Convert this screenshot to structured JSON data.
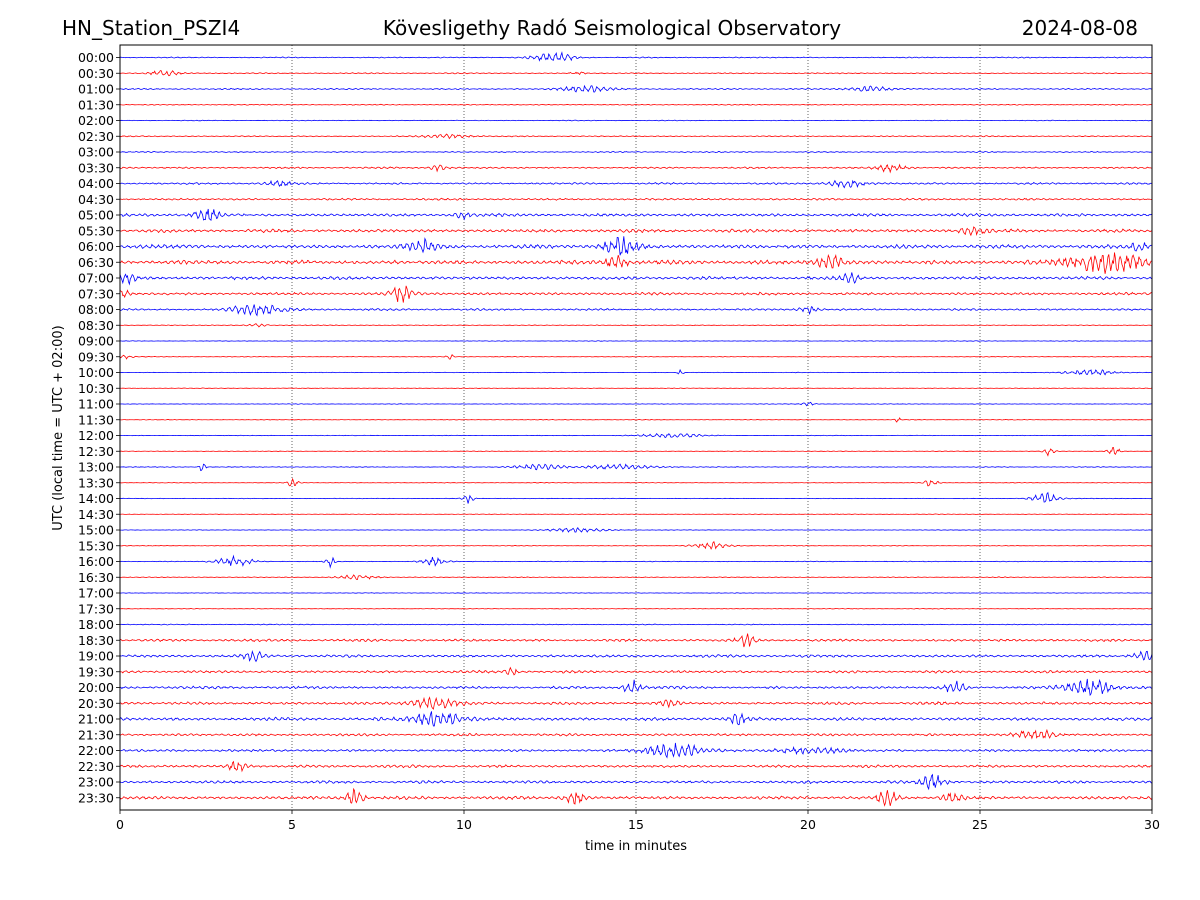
{
  "chart_data": {
    "type": "line",
    "chart_kind": "helicorder",
    "station_label": "HN_Station_PSZI4",
    "title": "Kövesligethy Radó Seismological Observatory",
    "date": "2024-08-08",
    "xlabel": "time in minutes",
    "ylabel": "UTC (local time = UTC + 02:00)",
    "xlim": [
      0,
      30
    ],
    "x_ticks": [
      0,
      5,
      10,
      15,
      20,
      25,
      30
    ],
    "vertical_gridlines": [
      5,
      10,
      15,
      20,
      25
    ],
    "row_labels": [
      "00:00",
      "00:30",
      "01:00",
      "01:30",
      "02:00",
      "02:30",
      "03:00",
      "03:30",
      "04:00",
      "04:30",
      "05:00",
      "05:30",
      "06:00",
      "06:30",
      "07:00",
      "07:30",
      "08:00",
      "08:30",
      "09:00",
      "09:30",
      "10:00",
      "10:30",
      "11:00",
      "11:30",
      "12:00",
      "12:30",
      "13:00",
      "13:30",
      "14:00",
      "14:30",
      "15:00",
      "15:30",
      "16:00",
      "16:30",
      "17:00",
      "17:30",
      "18:00",
      "18:30",
      "19:00",
      "19:30",
      "20:00",
      "20:30",
      "21:00",
      "21:30",
      "22:00",
      "22:30",
      "23:00",
      "23:30"
    ],
    "trace_colors": [
      "#0000ff",
      "#ff0000"
    ],
    "noise_levels": [
      0.6,
      0.6,
      0.7,
      0.5,
      0.4,
      0.6,
      0.6,
      0.9,
      1.1,
      1.1,
      1.6,
      1.8,
      2.2,
      2.3,
      1.8,
      1.5,
      1.1,
      0.4,
      0.3,
      0.3,
      0.3,
      0.3,
      0.3,
      0.3,
      0.3,
      0.3,
      0.4,
      0.3,
      0.3,
      0.3,
      0.3,
      0.3,
      0.4,
      0.4,
      0.3,
      0.3,
      0.5,
      1.4,
      1.5,
      1.4,
      1.5,
      1.6,
      1.8,
      1.4,
      1.3,
      1.5,
      1.6,
      1.8
    ],
    "bursts": [
      {
        "row": 0,
        "t": 12.6,
        "amp": 5,
        "dur": 0.7
      },
      {
        "row": 1,
        "t": 1.3,
        "amp": 3,
        "dur": 0.5
      },
      {
        "row": 1,
        "t": 13.3,
        "amp": 2.5,
        "dur": 0.2
      },
      {
        "row": 2,
        "t": 13.5,
        "amp": 3.5,
        "dur": 0.8
      },
      {
        "row": 2,
        "t": 21.8,
        "amp": 2.5,
        "dur": 0.8
      },
      {
        "row": 5,
        "t": 9.5,
        "amp": 2,
        "dur": 0.8
      },
      {
        "row": 7,
        "t": 9.3,
        "amp": 3,
        "dur": 0.3
      },
      {
        "row": 7,
        "t": 22.4,
        "amp": 4,
        "dur": 0.5
      },
      {
        "row": 8,
        "t": 4.6,
        "amp": 3,
        "dur": 0.4
      },
      {
        "row": 8,
        "t": 21.1,
        "amp": 4,
        "dur": 0.6
      },
      {
        "row": 10,
        "t": 2.5,
        "amp": 7,
        "dur": 0.4
      },
      {
        "row": 10,
        "t": 10,
        "amp": 4,
        "dur": 0.3
      },
      {
        "row": 11,
        "t": 24.8,
        "amp": 5,
        "dur": 0.4
      },
      {
        "row": 12,
        "t": 14.6,
        "amp": 9,
        "dur": 0.6
      },
      {
        "row": 12,
        "t": 8.8,
        "amp": 6,
        "dur": 0.6
      },
      {
        "row": 12,
        "t": 29.6,
        "amp": 6,
        "dur": 0.3
      },
      {
        "row": 13,
        "t": 28.6,
        "amp": 10,
        "dur": 1.2
      },
      {
        "row": 13,
        "t": 20.7,
        "amp": 7,
        "dur": 0.5
      },
      {
        "row": 13,
        "t": 14.4,
        "amp": 6,
        "dur": 0.4
      },
      {
        "row": 14,
        "t": 21.2,
        "amp": 6,
        "dur": 0.3
      },
      {
        "row": 14,
        "t": 0.2,
        "amp": 5,
        "dur": 0.3
      },
      {
        "row": 15,
        "t": 8.2,
        "amp": 9,
        "dur": 0.4
      },
      {
        "row": 15,
        "t": 0.1,
        "amp": 5,
        "dur": 0.2
      },
      {
        "row": 16,
        "t": 4,
        "amp": 5,
        "dur": 1
      },
      {
        "row": 16,
        "t": 20,
        "amp": 4,
        "dur": 0.3
      },
      {
        "row": 17,
        "t": 4,
        "amp": 2,
        "dur": 0.3
      },
      {
        "row": 19,
        "t": 0.2,
        "amp": 2,
        "dur": 0.2
      },
      {
        "row": 19,
        "t": 9.6,
        "amp": 2.5,
        "dur": 0.15
      },
      {
        "row": 20,
        "t": 16.3,
        "amp": 4,
        "dur": 0.1
      },
      {
        "row": 20,
        "t": 28.2,
        "amp": 3,
        "dur": 0.9
      },
      {
        "row": 22,
        "t": 20,
        "amp": 2,
        "dur": 0.2
      },
      {
        "row": 23,
        "t": 22.6,
        "amp": 3,
        "dur": 0.1
      },
      {
        "row": 24,
        "t": 16,
        "amp": 2.5,
        "dur": 1
      },
      {
        "row": 25,
        "t": 27,
        "amp": 4,
        "dur": 0.2
      },
      {
        "row": 25,
        "t": 28.9,
        "amp": 4,
        "dur": 0.2
      },
      {
        "row": 26,
        "t": 2.4,
        "amp": 5,
        "dur": 0.1
      },
      {
        "row": 26,
        "t": 12.2,
        "amp": 3,
        "dur": 0.8
      },
      {
        "row": 26,
        "t": 14.5,
        "amp": 2.5,
        "dur": 1.2
      },
      {
        "row": 27,
        "t": 5,
        "amp": 5,
        "dur": 0.2
      },
      {
        "row": 27,
        "t": 23.6,
        "amp": 5,
        "dur": 0.2
      },
      {
        "row": 28,
        "t": 10.1,
        "amp": 5,
        "dur": 0.2
      },
      {
        "row": 28,
        "t": 26.9,
        "amp": 6,
        "dur": 0.5
      },
      {
        "row": 30,
        "t": 13.3,
        "amp": 2,
        "dur": 1
      },
      {
        "row": 31,
        "t": 17.2,
        "amp": 4,
        "dur": 0.6
      },
      {
        "row": 32,
        "t": 3.3,
        "amp": 6,
        "dur": 0.6
      },
      {
        "row": 32,
        "t": 6.1,
        "amp": 6,
        "dur": 0.15
      },
      {
        "row": 32,
        "t": 9.1,
        "amp": 4,
        "dur": 0.4
      },
      {
        "row": 33,
        "t": 6.9,
        "amp": 3,
        "dur": 0.6
      },
      {
        "row": 37,
        "t": 18.2,
        "amp": 7,
        "dur": 0.3
      },
      {
        "row": 38,
        "t": 3.9,
        "amp": 6,
        "dur": 0.3
      },
      {
        "row": 38,
        "t": 29.8,
        "amp": 5,
        "dur": 0.4
      },
      {
        "row": 39,
        "t": 11.4,
        "amp": 4,
        "dur": 0.2
      },
      {
        "row": 40,
        "t": 28.2,
        "amp": 8,
        "dur": 0.8
      },
      {
        "row": 40,
        "t": 24.3,
        "amp": 8,
        "dur": 0.3
      },
      {
        "row": 40,
        "t": 14.9,
        "amp": 7,
        "dur": 0.3
      },
      {
        "row": 41,
        "t": 9.1,
        "amp": 5,
        "dur": 0.8
      },
      {
        "row": 41,
        "t": 16,
        "amp": 3,
        "dur": 0.4
      },
      {
        "row": 42,
        "t": 9.2,
        "amp": 8,
        "dur": 0.8
      },
      {
        "row": 42,
        "t": 18,
        "amp": 6,
        "dur": 0.3
      },
      {
        "row": 43,
        "t": 26.6,
        "amp": 5,
        "dur": 0.7
      },
      {
        "row": 44,
        "t": 16.1,
        "amp": 8,
        "dur": 0.9
      },
      {
        "row": 44,
        "t": 20,
        "amp": 3,
        "dur": 1.2
      },
      {
        "row": 45,
        "t": 3.4,
        "amp": 5,
        "dur": 0.3
      },
      {
        "row": 46,
        "t": 23.6,
        "amp": 8,
        "dur": 0.4
      },
      {
        "row": 47,
        "t": 6.8,
        "amp": 8,
        "dur": 0.3
      },
      {
        "row": 47,
        "t": 13.2,
        "amp": 8,
        "dur": 0.3
      },
      {
        "row": 47,
        "t": 22.3,
        "amp": 8,
        "dur": 0.3
      },
      {
        "row": 47,
        "t": 24.2,
        "amp": 7,
        "dur": 0.3
      }
    ]
  }
}
